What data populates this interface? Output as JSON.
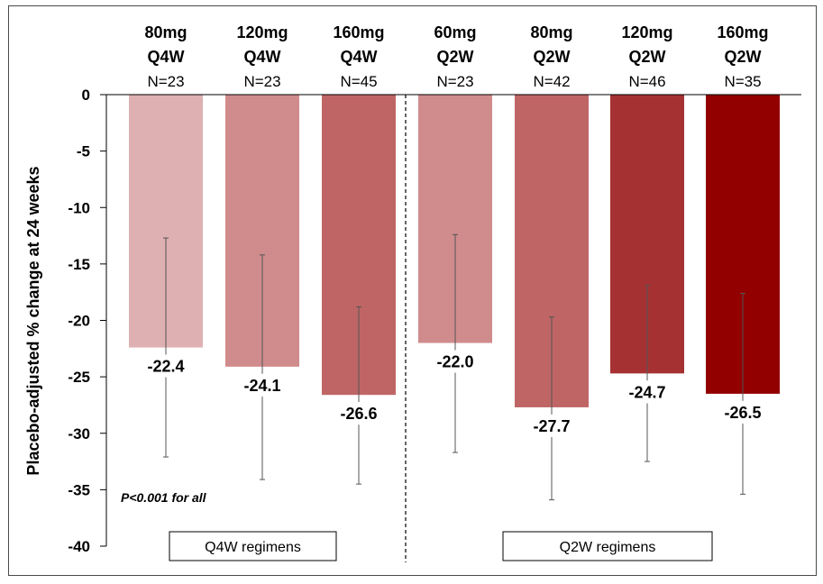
{
  "chart_data": {
    "type": "bar",
    "title": "",
    "xlabel": "",
    "ylabel": "Placebo-adjusted % change at 24 weeks",
    "ylim": [
      -40,
      0
    ],
    "yticks": [
      0,
      -5,
      -10,
      -15,
      -20,
      -25,
      -30,
      -35,
      -40
    ],
    "grid": false,
    "categories": [
      {
        "dose": "80mg",
        "freq": "Q4W",
        "n": "N=23"
      },
      {
        "dose": "120mg",
        "freq": "Q4W",
        "n": "N=23"
      },
      {
        "dose": "160mg",
        "freq": "Q4W",
        "n": "N=45"
      },
      {
        "dose": "60mg",
        "freq": "Q2W",
        "n": "N=23"
      },
      {
        "dose": "80mg",
        "freq": "Q2W",
        "n": "N=42"
      },
      {
        "dose": "120mg",
        "freq": "Q2W",
        "n": "N=46"
      },
      {
        "dose": "160mg",
        "freq": "Q2W",
        "n": "N=35"
      }
    ],
    "values": [
      -22.4,
      -24.1,
      -26.6,
      -22.0,
      -27.7,
      -24.7,
      -26.5
    ],
    "value_labels": [
      "-22.4",
      "-24.1",
      "-26.6",
      "-22.0",
      "-27.7",
      "-24.7",
      "-26.5"
    ],
    "error_bars": [
      {
        "upper": -12.7,
        "lower": -32.1
      },
      {
        "upper": -14.2,
        "lower": -34.1
      },
      {
        "upper": -18.8,
        "lower": -34.5
      },
      {
        "upper": -12.4,
        "lower": -31.7
      },
      {
        "upper": -19.7,
        "lower": -35.9
      },
      {
        "upper": -16.9,
        "lower": -32.5
      },
      {
        "upper": -17.6,
        "lower": -35.4
      }
    ],
    "colors": [
      "#dfb0b1",
      "#d08b8c",
      "#bf6565",
      "#d08b8c",
      "#bf6565",
      "#a53133",
      "#930000"
    ],
    "annotation": "P<0.001 for all",
    "groups": [
      {
        "label": "Q4W regimens",
        "bars": [
          0,
          1,
          2
        ]
      },
      {
        "label": "Q2W regimens",
        "bars": [
          3,
          4,
          5,
          6
        ]
      }
    ]
  }
}
